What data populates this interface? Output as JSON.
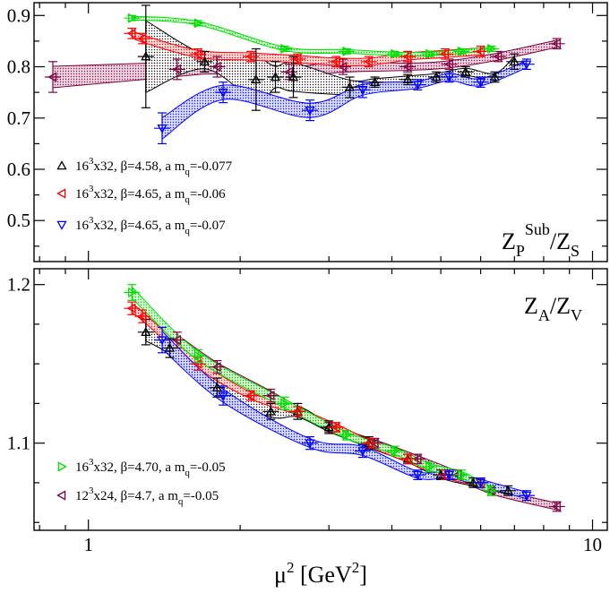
{
  "chart_data": [
    {
      "type": "scatter",
      "panel": "top",
      "title": "",
      "panel_label": {
        "main": "Z",
        "sub1": "P",
        "sup1": "Sub",
        "slash": "/Z",
        "sub2": "S"
      },
      "xlabel": "",
      "ylabel": "",
      "x_scale": "log",
      "xlim": [
        0.78,
        10.7
      ],
      "ylim": [
        0.42,
        0.925
      ],
      "x_ticks": [
        1,
        10
      ],
      "x_tick_labels": [
        "",
        ""
      ],
      "y_ticks": [
        0.5,
        0.6,
        0.7,
        0.8,
        0.9
      ],
      "y_tick_labels": [
        "0.5",
        "0.6",
        "0.7",
        "0.8",
        "0.9"
      ],
      "grid": false,
      "legend_position": "bottom-left",
      "series": [
        {
          "name": "16³x32, β=4.58, a m_q=-0.077",
          "name_parts": [
            "16",
            "3",
            "x32, β=4.58, a m",
            "q",
            "=-0.077"
          ],
          "color": "#000000",
          "marker": "triangle-up",
          "band": true,
          "x": [
            1.3,
            1.7,
            2.15,
            2.35,
            2.55,
            3.3,
            3.7,
            4.3,
            4.9,
            5.6,
            6.4,
            7.0
          ],
          "y": [
            0.82,
            0.81,
            0.775,
            0.78,
            0.78,
            0.76,
            0.77,
            0.775,
            0.78,
            0.79,
            0.78,
            0.81
          ],
          "yerr": [
            0.1,
            0.02,
            0.06,
            0.03,
            0.04,
            0.02,
            0.01,
            0.01,
            0.01,
            0.01,
            0.01,
            0.015
          ]
        },
        {
          "name": "16³x32, β=4.65, a m_q=-0.06",
          "name_parts": [
            "16",
            "3",
            "x32, β=4.65, a m",
            "q",
            "=-0.06"
          ],
          "color": "#ff0000",
          "marker": "triangle-left",
          "band": true,
          "x": [
            1.22,
            1.28,
            1.65,
            2.1,
            2.6,
            3.1,
            3.6,
            4.3,
            5.1,
            6.0
          ],
          "y": [
            0.865,
            0.855,
            0.825,
            0.82,
            0.815,
            0.81,
            0.81,
            0.82,
            0.825,
            0.83
          ],
          "yerr": [
            0.01,
            0.01,
            0.01,
            0.01,
            0.01,
            0.01,
            0.01,
            0.01,
            0.01,
            0.01
          ]
        },
        {
          "name": "16³x32, β=4.65, a m_q=-0.07",
          "name_parts": [
            "16",
            "3",
            "x32, β=4.65, a m",
            "q",
            "=-0.07"
          ],
          "color": "#0000ff",
          "marker": "triangle-down",
          "band": true,
          "x": [
            1.4,
            1.85,
            2.75,
            3.5,
            4.5,
            5.2,
            6.0,
            7.4
          ],
          "y": [
            0.68,
            0.75,
            0.715,
            0.755,
            0.765,
            0.78,
            0.77,
            0.805
          ],
          "yerr": [
            0.03,
            0.02,
            0.02,
            0.015,
            0.01,
            0.01,
            0.01,
            0.01
          ]
        },
        {
          "name": "16³x32, β=4.70, a m_q=-0.05",
          "color": "#00ff00",
          "marker": "triangle-right",
          "band": true,
          "x": [
            1.22,
            1.65,
            2.45,
            3.25,
            4.05,
            4.75,
            5.5,
            6.3
          ],
          "y": [
            0.895,
            0.885,
            0.835,
            0.83,
            0.825,
            0.825,
            0.83,
            0.835
          ],
          "yerr": [
            0.005,
            0.005,
            0.005,
            0.005,
            0.005,
            0.005,
            0.005,
            0.005
          ]
        },
        {
          "name": "12³x24, β=4.7, a m_q=-0.05",
          "color": "#800040",
          "marker": "triangle-left",
          "band": true,
          "x": [
            0.85,
            1.5,
            1.8,
            2.5,
            3.2,
            4.3,
            5.2,
            6.5,
            8.5
          ],
          "y": [
            0.78,
            0.795,
            0.8,
            0.79,
            0.8,
            0.8,
            0.805,
            0.82,
            0.845
          ],
          "yerr": [
            0.03,
            0.02,
            0.02,
            0.015,
            0.015,
            0.01,
            0.01,
            0.01,
            0.01
          ]
        }
      ]
    },
    {
      "type": "scatter",
      "panel": "bottom",
      "title": "",
      "panel_label": {
        "main": "Z",
        "sub1": "A",
        "slash": "/Z",
        "sub2": "V"
      },
      "xlabel": "μ² [GeV²]",
      "xlabel_parts": {
        "mu": "μ",
        "mu_sup": "2",
        "unit": " [GeV",
        "unit_sup": "2",
        "close": "]"
      },
      "ylabel": "",
      "x_scale": "log",
      "xlim": [
        0.78,
        10.7
      ],
      "ylim": [
        1.045,
        1.21
      ],
      "x_ticks": [
        1,
        10
      ],
      "x_tick_labels": [
        "1",
        "10"
      ],
      "y_ticks": [
        1.1,
        1.2
      ],
      "y_tick_labels": [
        "1.1",
        "1.2"
      ],
      "grid": false,
      "legend_position": "bottom-left",
      "series": [
        {
          "name": "16³x32, β=4.58, a m_q=-0.077",
          "color": "#000000",
          "marker": "triangle-up",
          "band": true,
          "x": [
            1.3,
            1.45,
            1.8,
            2.3,
            2.6,
            3.0,
            3.6,
            4.3,
            5.0,
            5.8,
            6.8
          ],
          "y": [
            1.17,
            1.16,
            1.135,
            1.12,
            1.12,
            1.11,
            1.1,
            1.09,
            1.08,
            1.075,
            1.07
          ],
          "yerr": [
            0.008,
            0.006,
            0.006,
            0.005,
            0.005,
            0.004,
            0.004,
            0.003,
            0.003,
            0.003,
            0.003
          ]
        },
        {
          "name": "16³x32, β=4.65, a m_q=-0.06",
          "color": "#ff0000",
          "marker": "triangle-left",
          "band": true,
          "x": [
            1.22,
            1.28,
            1.65,
            2.1,
            2.6,
            3.1,
            3.6,
            4.3,
            5.1,
            6.0
          ],
          "y": [
            1.185,
            1.18,
            1.15,
            1.13,
            1.12,
            1.11,
            1.1,
            1.09,
            1.08,
            1.075
          ],
          "yerr": [
            0.004,
            0.004,
            0.004,
            0.003,
            0.003,
            0.003,
            0.003,
            0.003,
            0.003,
            0.003
          ]
        },
        {
          "name": "16³x32, β=4.65, a m_q=-0.07",
          "color": "#0000ff",
          "marker": "triangle-down",
          "band": true,
          "x": [
            1.4,
            1.85,
            2.75,
            3.5,
            4.5,
            5.2,
            6.0,
            7.4
          ],
          "y": [
            1.165,
            1.13,
            1.1,
            1.095,
            1.08,
            1.08,
            1.075,
            1.067
          ],
          "yerr": [
            0.008,
            0.006,
            0.004,
            0.004,
            0.003,
            0.003,
            0.003,
            0.003
          ]
        },
        {
          "name": "16³x32, β=4.70, a m_q=-0.05",
          "name_parts": [
            "16",
            "3",
            "x32, β=4.70, a m",
            "q",
            "=-0.05"
          ],
          "color": "#00ff00",
          "marker": "triangle-right",
          "band": true,
          "x": [
            1.22,
            1.65,
            2.45,
            3.25,
            4.05,
            4.75,
            5.5,
            6.3
          ],
          "y": [
            1.195,
            1.155,
            1.125,
            1.105,
            1.095,
            1.085,
            1.08,
            1.07
          ],
          "yerr": [
            0.005,
            0.004,
            0.004,
            0.003,
            0.003,
            0.003,
            0.003,
            0.003
          ]
        },
        {
          "name": "12³x24, β=4.7, a m_q=-0.05",
          "name_parts": [
            "12",
            "3",
            "x24, β=4.7, a m",
            "q",
            "=-0.05"
          ],
          "color": "#800040",
          "marker": "triangle-left",
          "band": true,
          "x": [
            1.5,
            1.8,
            2.3,
            3.0,
            3.7,
            4.5,
            5.4,
            6.3,
            8.5
          ],
          "y": [
            1.165,
            1.148,
            1.13,
            1.11,
            1.1,
            1.09,
            1.08,
            1.07,
            1.06
          ],
          "yerr": [
            0.005,
            0.004,
            0.004,
            0.003,
            0.003,
            0.003,
            0.003,
            0.003,
            0.003
          ]
        }
      ]
    }
  ]
}
